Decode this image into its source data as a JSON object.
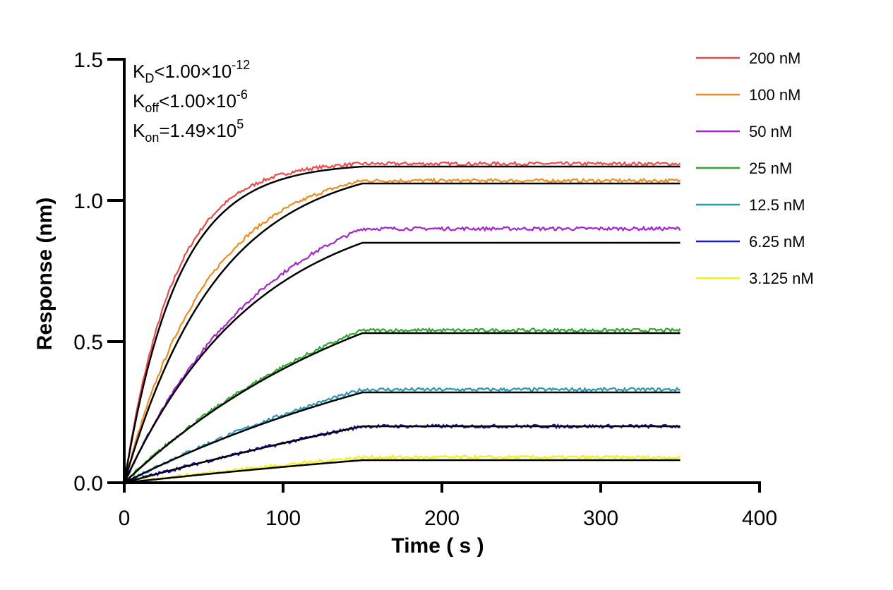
{
  "chart_data": {
    "type": "line",
    "title": "",
    "xlabel": "Time ( s )",
    "ylabel": "Response (nm)",
    "xlim": [
      0,
      400
    ],
    "ylim": [
      0,
      1.5
    ],
    "xticks": [
      "0",
      "100",
      "200",
      "300",
      "400"
    ],
    "yticks": [
      "0.0",
      "0.5",
      "1.0",
      "1.5"
    ],
    "grid": false,
    "legend_position": "top-right",
    "association_end_s": 150,
    "dissociation_end_s": 350,
    "annotations": {
      "kd": {
        "symbol": "K",
        "sub": "D",
        "text": "<1.00×10",
        "sup": "-12"
      },
      "koff": {
        "symbol": "K",
        "sub": "off",
        "text": "<1.00×10",
        "sup": "-6"
      },
      "kon": {
        "symbol": "K",
        "sub": "on",
        "text": "=1.49×10",
        "sup": "5"
      }
    },
    "fit_color": "#000000",
    "series": [
      {
        "name": "200 nM",
        "color": "#ee4a4a",
        "plateau": 1.13,
        "fit_plateau": 1.12,
        "rate": 0.032,
        "fit_rate": 0.03
      },
      {
        "name": "100 nM",
        "color": "#f08c1e",
        "plateau": 1.07,
        "fit_plateau": 1.06,
        "rate": 0.019,
        "fit_rate": 0.017
      },
      {
        "name": "50 nM",
        "color": "#a822d2",
        "plateau": 0.9,
        "fit_plateau": 0.85,
        "rate": 0.011,
        "fit_rate": 0.012
      },
      {
        "name": "25 nM",
        "color": "#2ea82e",
        "plateau": 0.54,
        "fit_plateau": 0.53,
        "rate": 0.006,
        "fit_rate": 0.006
      },
      {
        "name": "12.5 nM",
        "color": "#2899b4",
        "plateau": 0.33,
        "fit_plateau": 0.32,
        "rate": 0.004,
        "fit_rate": 0.004
      },
      {
        "name": "6.25 nM",
        "color": "#1a1ad2",
        "plateau": 0.2,
        "fit_plateau": 0.2,
        "rate": 0.002,
        "fit_rate": 0.002
      },
      {
        "name": "3.125 nM",
        "color": "#f4f01a",
        "plateau": 0.09,
        "fit_plateau": 0.08,
        "rate": 0.002,
        "fit_rate": 0.002
      }
    ]
  }
}
